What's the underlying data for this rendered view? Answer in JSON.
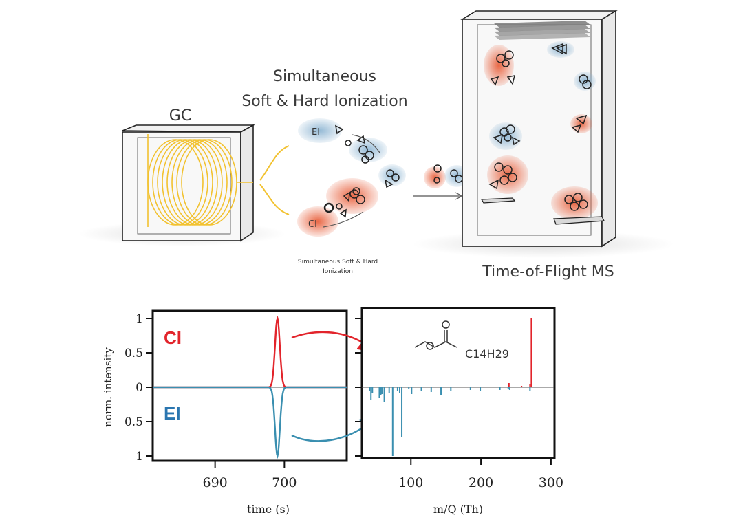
{
  "labels": {
    "gc": "GC",
    "ionization_line1": "Simultaneous",
    "ionization_line2": "Soft & Hard Ionization",
    "ionization_caption_line1": "Simultaneous Soft & Hard",
    "ionization_caption_line2": "Ionization",
    "ei_cloud": "EI",
    "ci_cloud": "CI",
    "tof": "Time-of-Flight MS"
  },
  "colors": {
    "ci": "#e2242b",
    "ei": "#3a8fb0",
    "gc_coil": "#f2c230",
    "soft_red": "#e8603c",
    "soft_blue": "#8fb6d3"
  },
  "chart_data": [
    {
      "type": "line",
      "xlabel": "time (s)",
      "ylabel": "norm. intensity",
      "xticks": [
        "690",
        "700"
      ],
      "yticks": [
        "1",
        "0.5",
        "0",
        "0.5",
        "1"
      ],
      "ylim": [
        -1,
        1
      ],
      "xlim": [
        681,
        709
      ],
      "series": [
        {
          "name": "CI",
          "peak_x": 699,
          "peak_y": 1,
          "width": 0.35,
          "color": "#e2242b"
        },
        {
          "name": "EI",
          "peak_x": 699,
          "peak_y": -1,
          "width": 0.35,
          "color": "#3a8fb0"
        }
      ]
    },
    {
      "type": "bar",
      "xlabel": "m/Q (Th)",
      "xticks": [
        "100",
        "200",
        "300"
      ],
      "xlim": [
        30,
        305
      ],
      "ylim": [
        -1,
        1
      ],
      "structure_label": "C14H29",
      "series": [
        {
          "name": "CI",
          "color": "#e2242b",
          "x": [
            240,
            258,
            270,
            272
          ],
          "values": [
            0.06,
            0.02,
            0.04,
            1.0
          ]
        },
        {
          "name": "EI",
          "color": "#3a8fb0",
          "x": [
            41,
            43,
            45,
            55,
            57,
            59,
            62,
            69,
            74,
            81,
            84,
            87,
            97,
            101,
            115,
            129,
            143,
            157,
            185,
            199,
            227,
            239,
            241,
            270
          ],
          "values": [
            -0.05,
            -0.18,
            -0.08,
            -0.16,
            -0.12,
            -0.1,
            -0.22,
            -0.08,
            -1.0,
            -0.05,
            -0.08,
            -0.72,
            -0.03,
            -0.1,
            -0.05,
            -0.07,
            -0.12,
            -0.05,
            -0.04,
            -0.05,
            -0.04,
            -0.03,
            -0.04,
            -0.05
          ]
        }
      ]
    }
  ]
}
